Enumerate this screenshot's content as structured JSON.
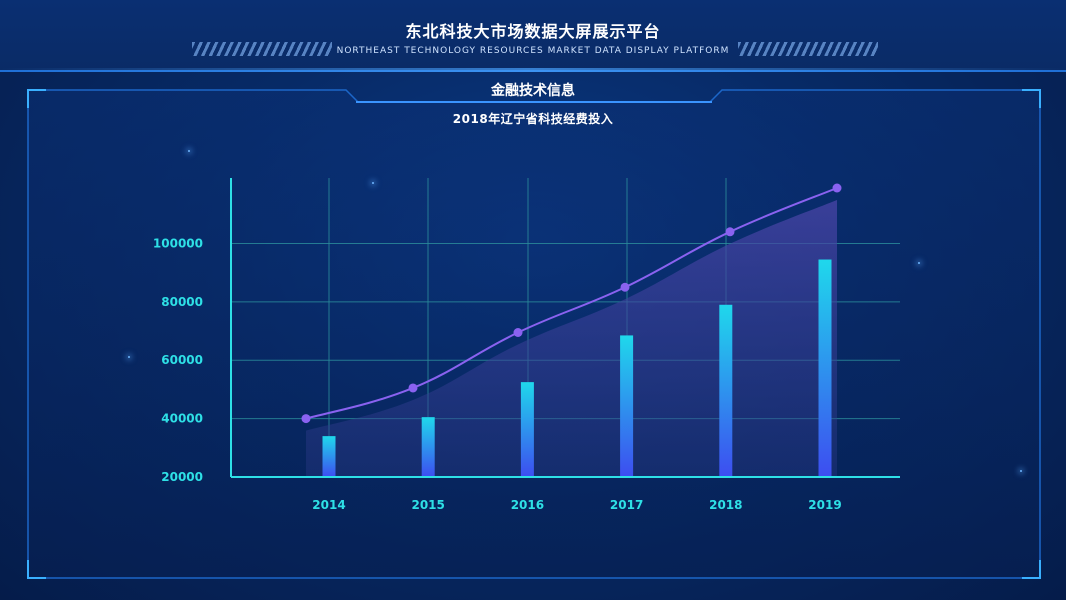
{
  "header": {
    "title": "东北科技大市场数据大屏展示平台",
    "subtitle": "NORTHEAST TECHNOLOGY RESOURCES MARKET DATA DISPLAY PLATFORM"
  },
  "panel": {
    "title": "金融技术信息"
  },
  "colors": {
    "accent": "#2ee0e6",
    "grid": "#2a8a9a",
    "line": "#8a62f0",
    "bar_top": "#1fd8ec",
    "bar_bottom": "#3d4df0",
    "area": "#3b3c8a"
  },
  "chart_data": {
    "type": "bar",
    "title": "2018年辽宁省科技经费投入",
    "xlabel": "",
    "ylabel": "",
    "categories": [
      "2014",
      "2015",
      "2016",
      "2017",
      "2018",
      "2019"
    ],
    "ylim": [
      20000,
      120000
    ],
    "yticks": [
      20000,
      40000,
      60000,
      80000,
      100000
    ],
    "grid": true,
    "series": [
      {
        "kind": "bar",
        "values": [
          34000,
          40500,
          52500,
          68500,
          79000,
          94500
        ]
      },
      {
        "kind": "line",
        "values": [
          40000,
          50500,
          69500,
          85000,
          104000,
          119000
        ]
      }
    ]
  }
}
